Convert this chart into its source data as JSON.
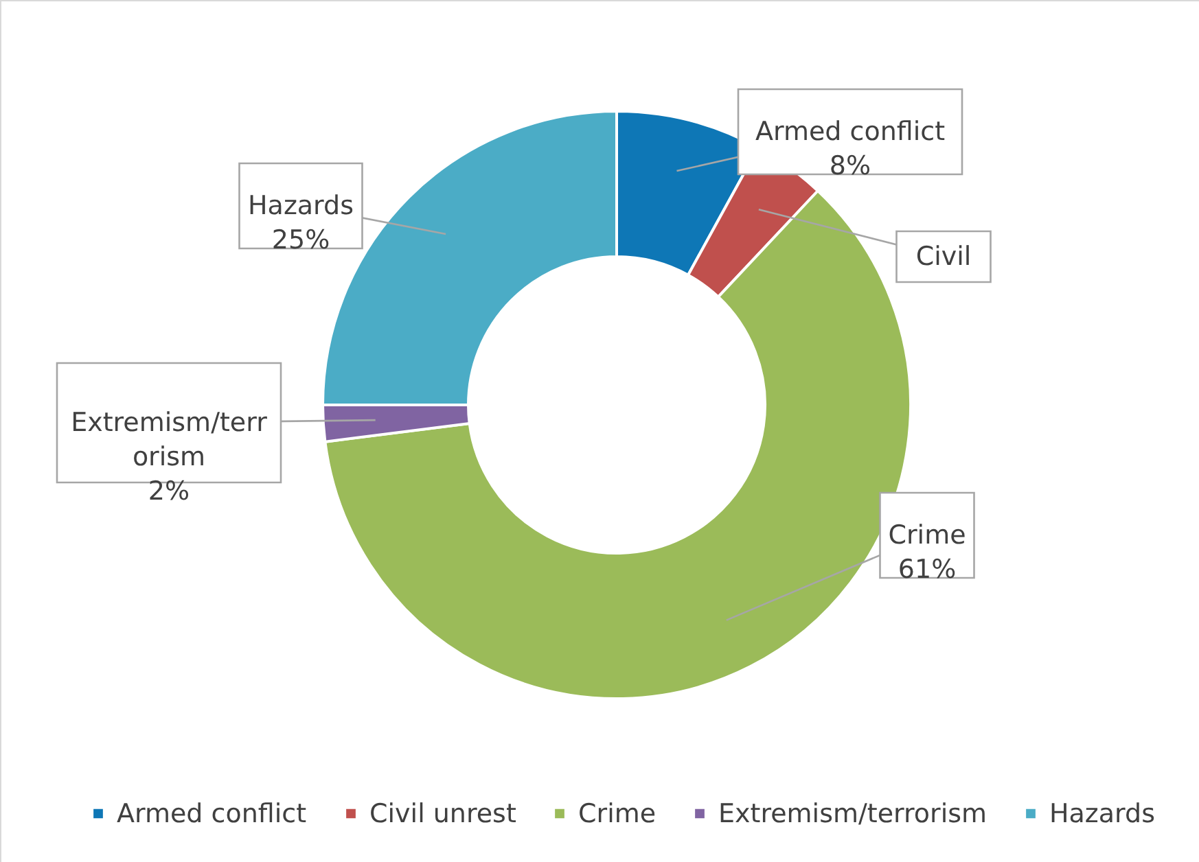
{
  "chart_data": {
    "type": "donut",
    "categories": [
      "Armed conflict",
      "Civil unrest",
      "Crime",
      "Extremism/terrorism",
      "Hazards"
    ],
    "values": [
      8,
      4,
      61,
      2,
      25
    ],
    "colors": [
      "#0e77b6",
      "#c0504d",
      "#9bbb59",
      "#8064a2",
      "#4bacc6"
    ],
    "value_labels": [
      "Armed conflict\n8%",
      "Civil",
      "Crime\n61%",
      "Extremism/terr\norism\n2%",
      "Hazards\n25%"
    ],
    "legend": "bottom"
  }
}
